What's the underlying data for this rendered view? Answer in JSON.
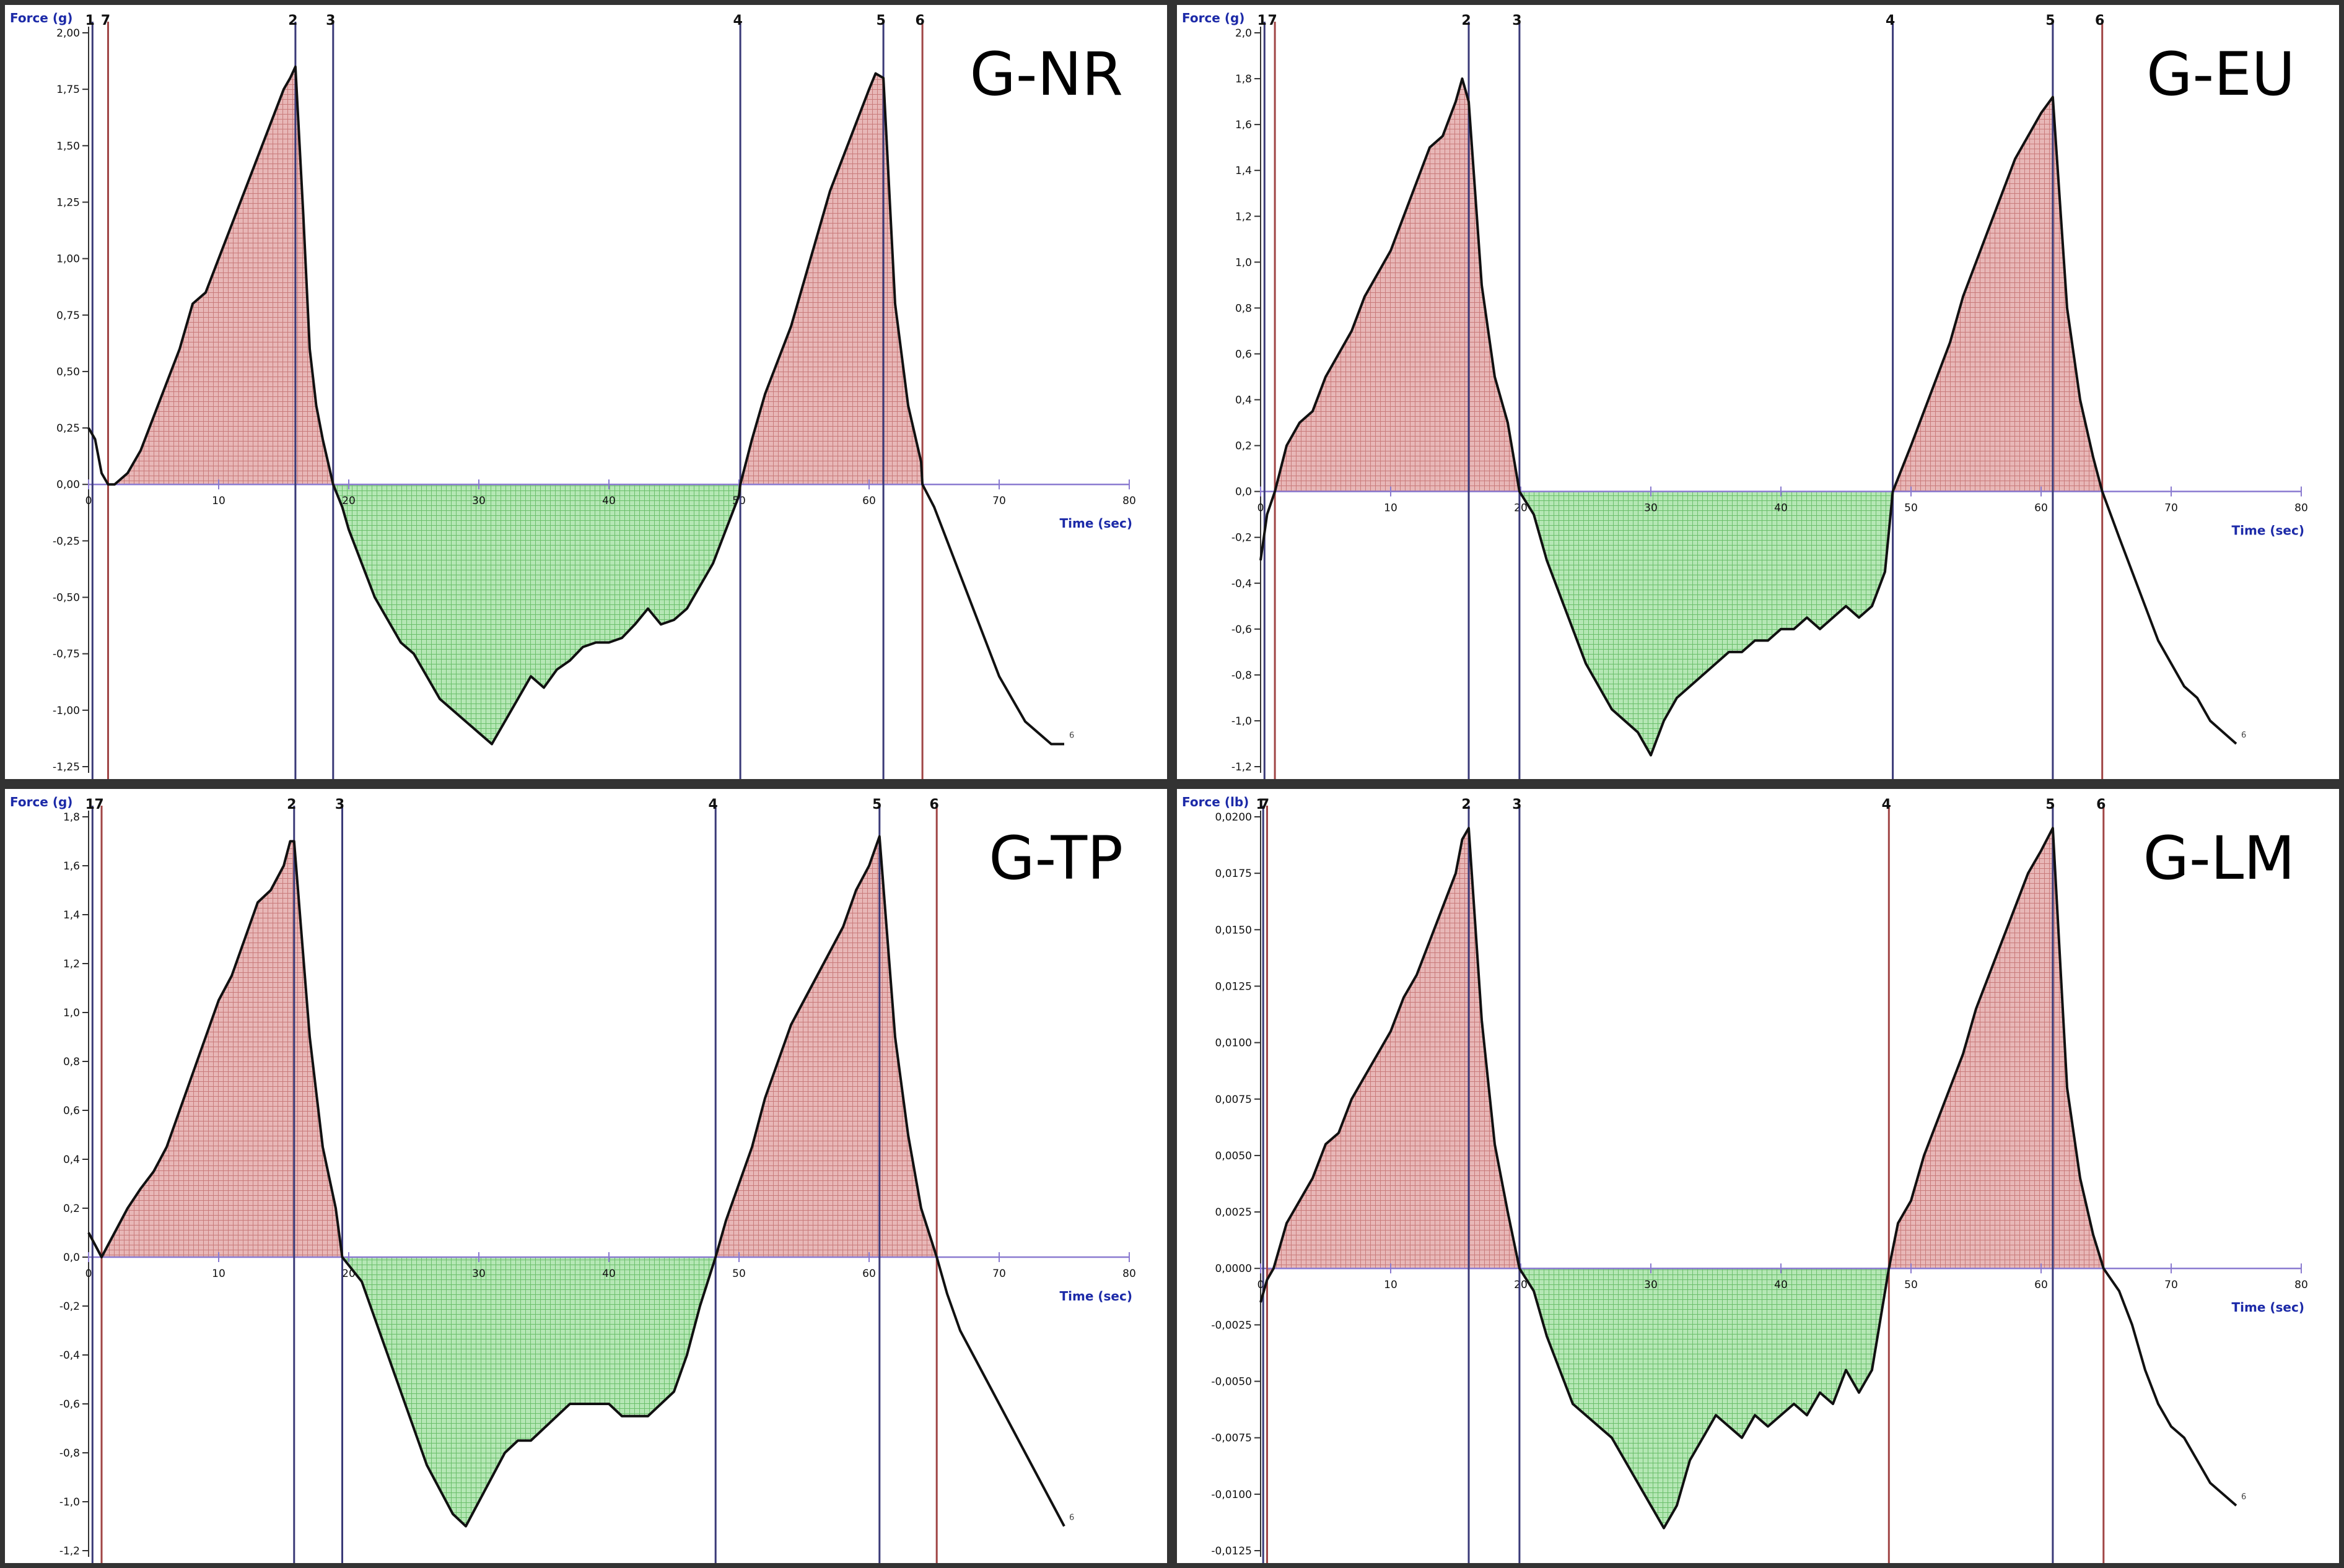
{
  "chart_data": [
    {
      "type": "area",
      "label": "G-NR",
      "ylabel": "Force (g)",
      "xlabel": "Time (sec)",
      "xlim": [
        0,
        80
      ],
      "ylim": [
        -1.25,
        2.0
      ],
      "x_ticks": [
        0,
        10,
        20,
        30,
        40,
        50,
        60,
        70,
        80
      ],
      "x_tick_labels": [
        "0",
        "10",
        "20",
        "30",
        "40",
        "50",
        "60",
        "70",
        "80"
      ],
      "y_ticks": [
        2.0,
        1.75,
        1.5,
        1.25,
        1.0,
        0.75,
        0.5,
        0.25,
        0.0,
        -0.25,
        -0.5,
        -0.75,
        -1.0,
        -1.25
      ],
      "y_tick_labels": [
        "2,00",
        "1,75",
        "1,50",
        "1,25",
        "1,00",
        "0,75",
        "0,50",
        "0,25",
        "0,00",
        "-0,25",
        "-0,50",
        "-0,75",
        "-1,00",
        "-1,25"
      ],
      "markers": [
        {
          "label": "1",
          "x": 0.3,
          "color": "#3a3a78"
        },
        {
          "label": "7",
          "x": 1.5,
          "color": "#a04545"
        },
        {
          "label": "2",
          "x": 15.9,
          "color": "#3a3a78"
        },
        {
          "label": "3",
          "x": 18.8,
          "color": "#3a3a78"
        },
        {
          "label": "4",
          "x": 50.1,
          "color": "#3a3a78"
        },
        {
          "label": "5",
          "x": 61.1,
          "color": "#3a3a78"
        },
        {
          "label": "6",
          "x": 64.1,
          "color": "#a04545"
        }
      ],
      "end_label": "6",
      "series": [
        {
          "x": [
            0,
            0.5,
            1,
            1.5,
            2,
            3,
            4,
            5,
            6,
            7,
            8,
            9,
            10,
            11,
            12,
            13,
            14,
            15,
            15.5,
            15.9,
            16.5,
            17,
            17.5,
            18,
            18.8,
            19.5,
            20,
            21,
            22,
            23,
            24,
            25,
            26,
            27,
            28,
            29,
            30,
            31,
            32,
            33,
            34,
            35,
            36,
            37,
            38,
            39,
            40,
            41,
            42,
            43,
            44,
            45,
            46,
            47,
            48,
            49,
            50,
            50.1,
            51,
            52,
            53,
            54,
            55,
            56,
            57,
            58,
            59,
            60,
            60.5,
            61.1,
            62,
            63,
            64,
            64.1,
            65,
            66,
            67,
            68,
            69,
            70,
            71,
            72,
            73,
            74,
            75
          ],
          "y": [
            0.25,
            0.2,
            0.05,
            0.0,
            0.0,
            0.05,
            0.15,
            0.3,
            0.45,
            0.6,
            0.8,
            0.85,
            1.0,
            1.15,
            1.3,
            1.45,
            1.6,
            1.75,
            1.8,
            1.85,
            1.2,
            0.6,
            0.35,
            0.2,
            0.0,
            -0.1,
            -0.2,
            -0.35,
            -0.5,
            -0.6,
            -0.7,
            -0.75,
            -0.85,
            -0.95,
            -1.0,
            -1.05,
            -1.1,
            -1.15,
            -1.05,
            -0.95,
            -0.85,
            -0.9,
            -0.82,
            -0.78,
            -0.72,
            -0.7,
            -0.7,
            -0.68,
            -0.62,
            -0.55,
            -0.62,
            -0.6,
            -0.55,
            -0.45,
            -0.35,
            -0.2,
            -0.05,
            0.0,
            0.2,
            0.4,
            0.55,
            0.7,
            0.9,
            1.1,
            1.3,
            1.45,
            1.6,
            1.75,
            1.82,
            1.8,
            0.8,
            0.35,
            0.1,
            0.0,
            -0.1,
            -0.25,
            -0.4,
            -0.55,
            -0.7,
            -0.85,
            -0.95,
            -1.05,
            -1.1,
            -1.15,
            -1.15
          ]
        }
      ]
    },
    {
      "type": "area",
      "label": "G-EU",
      "ylabel": "Force (g)",
      "xlabel": "Time (sec)",
      "xlim": [
        0,
        80
      ],
      "ylim": [
        -1.2,
        2.0
      ],
      "x_ticks": [
        0,
        10,
        20,
        30,
        40,
        50,
        60,
        70,
        80
      ],
      "x_tick_labels": [
        "0",
        "10",
        "20",
        "30",
        "40",
        "50",
        "60",
        "70",
        "80"
      ],
      "y_ticks": [
        2.0,
        1.8,
        1.6,
        1.4,
        1.2,
        1.0,
        0.8,
        0.6,
        0.4,
        0.2,
        0.0,
        -0.2,
        -0.4,
        -0.6,
        -0.8,
        -1.0,
        -1.2
      ],
      "y_tick_labels": [
        "2,0",
        "1,8",
        "1,6",
        "1,4",
        "1,2",
        "1,0",
        "0,8",
        "0,6",
        "0,4",
        "0,2",
        "0,0",
        "-0,2",
        "-0,4",
        "-0,6",
        "-0,8",
        "-1,0",
        "-1,2"
      ],
      "markers": [
        {
          "label": "1",
          "x": 0.3,
          "color": "#3a3a78"
        },
        {
          "label": "7",
          "x": 1.1,
          "color": "#a04545"
        },
        {
          "label": "2",
          "x": 16.0,
          "color": "#3a3a78"
        },
        {
          "label": "3",
          "x": 19.9,
          "color": "#3a3a78"
        },
        {
          "label": "4",
          "x": 48.6,
          "color": "#3a3a78"
        },
        {
          "label": "5",
          "x": 60.9,
          "color": "#3a3a78"
        },
        {
          "label": "6",
          "x": 64.7,
          "color": "#a04545"
        }
      ],
      "end_label": "6",
      "series": [
        {
          "x": [
            0,
            0.5,
            1.1,
            2,
            3,
            4,
            5,
            6,
            7,
            8,
            9,
            10,
            11,
            12,
            13,
            14,
            15,
            15.5,
            16,
            17,
            18,
            19,
            19.9,
            21,
            22,
            23,
            24,
            25,
            26,
            27,
            28,
            29,
            30,
            31,
            32,
            33,
            34,
            35,
            36,
            37,
            38,
            39,
            40,
            41,
            42,
            43,
            44,
            45,
            46,
            47,
            48,
            48.6,
            50,
            51,
            52,
            53,
            54,
            55,
            56,
            57,
            58,
            59,
            60,
            60.9,
            62,
            63,
            64,
            64.7,
            66,
            67,
            68,
            69,
            70,
            71,
            72,
            73,
            74,
            75
          ],
          "y": [
            -0.3,
            -0.1,
            0.0,
            0.2,
            0.3,
            0.35,
            0.5,
            0.6,
            0.7,
            0.85,
            0.95,
            1.05,
            1.2,
            1.35,
            1.5,
            1.55,
            1.7,
            1.8,
            1.7,
            0.9,
            0.5,
            0.3,
            0.0,
            -0.1,
            -0.3,
            -0.45,
            -0.6,
            -0.75,
            -0.85,
            -0.95,
            -1.0,
            -1.05,
            -1.15,
            -1.0,
            -0.9,
            -0.85,
            -0.8,
            -0.75,
            -0.7,
            -0.7,
            -0.65,
            -0.65,
            -0.6,
            -0.6,
            -0.55,
            -0.6,
            -0.55,
            -0.5,
            -0.55,
            -0.5,
            -0.35,
            0.0,
            0.2,
            0.35,
            0.5,
            0.65,
            0.85,
            1.0,
            1.15,
            1.3,
            1.45,
            1.55,
            1.65,
            1.72,
            0.8,
            0.4,
            0.15,
            0.0,
            -0.2,
            -0.35,
            -0.5,
            -0.65,
            -0.75,
            -0.85,
            -0.9,
            -1.0,
            -1.05,
            -1.1
          ]
        }
      ]
    },
    {
      "type": "area",
      "label": "G-TP",
      "ylabel": "Force (g)",
      "xlabel": "Time (sec)",
      "xlim": [
        0,
        80
      ],
      "ylim": [
        -1.2,
        1.8
      ],
      "x_ticks": [
        0,
        10,
        20,
        30,
        40,
        50,
        60,
        70,
        80
      ],
      "x_tick_labels": [
        "0",
        "10",
        "20",
        "30",
        "40",
        "50",
        "60",
        "70",
        "80"
      ],
      "y_ticks": [
        1.8,
        1.6,
        1.4,
        1.2,
        1.0,
        0.8,
        0.6,
        0.4,
        0.2,
        0.0,
        -0.2,
        -0.4,
        -0.6,
        -0.8,
        -1.0,
        -1.2
      ],
      "y_tick_labels": [
        "1,8",
        "1,6",
        "1,4",
        "1,2",
        "1,0",
        "0,8",
        "0,6",
        "0,4",
        "0,2",
        "0,0",
        "-0,2",
        "-0,4",
        "-0,6",
        "-0,8",
        "-1,0",
        "-1,2"
      ],
      "markers": [
        {
          "label": "1",
          "x": 0.3,
          "color": "#3a3a78"
        },
        {
          "label": "7",
          "x": 1.0,
          "color": "#a04545"
        },
        {
          "label": "2",
          "x": 15.8,
          "color": "#3a3a78"
        },
        {
          "label": "3",
          "x": 19.5,
          "color": "#3a3a78"
        },
        {
          "label": "4",
          "x": 48.2,
          "color": "#3a3a78"
        },
        {
          "label": "5",
          "x": 60.8,
          "color": "#3a3a78"
        },
        {
          "label": "6",
          "x": 65.2,
          "color": "#a04545"
        }
      ],
      "end_label": "6",
      "series": [
        {
          "x": [
            0,
            0.5,
            1,
            2,
            3,
            4,
            5,
            6,
            7,
            8,
            9,
            10,
            11,
            12,
            13,
            14,
            15,
            15.5,
            15.8,
            17,
            18,
            19,
            19.5,
            21,
            22,
            23,
            24,
            25,
            26,
            27,
            28,
            29,
            30,
            31,
            32,
            33,
            34,
            35,
            36,
            37,
            38,
            39,
            40,
            41,
            42,
            43,
            44,
            45,
            46,
            47,
            48.2,
            49,
            50,
            51,
            52,
            53,
            54,
            55,
            56,
            57,
            58,
            59,
            60,
            60.8,
            62,
            63,
            64,
            65.2,
            66,
            67,
            68,
            69,
            70,
            71,
            72,
            73,
            74,
            75
          ],
          "y": [
            0.1,
            0.05,
            0.0,
            0.1,
            0.2,
            0.28,
            0.35,
            0.45,
            0.6,
            0.75,
            0.9,
            1.05,
            1.15,
            1.3,
            1.45,
            1.5,
            1.6,
            1.7,
            1.7,
            0.9,
            0.45,
            0.2,
            0.0,
            -0.1,
            -0.25,
            -0.4,
            -0.55,
            -0.7,
            -0.85,
            -0.95,
            -1.05,
            -1.1,
            -1.0,
            -0.9,
            -0.8,
            -0.75,
            -0.75,
            -0.7,
            -0.65,
            -0.6,
            -0.6,
            -0.6,
            -0.6,
            -0.65,
            -0.65,
            -0.65,
            -0.6,
            -0.55,
            -0.4,
            -0.2,
            0.0,
            0.15,
            0.3,
            0.45,
            0.65,
            0.8,
            0.95,
            1.05,
            1.15,
            1.25,
            1.35,
            1.5,
            1.6,
            1.72,
            0.9,
            0.5,
            0.2,
            0.0,
            -0.15,
            -0.3,
            -0.4,
            -0.5,
            -0.6,
            -0.7,
            -0.8,
            -0.9,
            -1.0,
            -1.1
          ]
        }
      ]
    },
    {
      "type": "area",
      "label": "G-LM",
      "ylabel": "Force (lb)",
      "xlabel": "Time (sec)",
      "xlim": [
        0,
        80
      ],
      "ylim": [
        -0.0125,
        0.02
      ],
      "x_ticks": [
        0,
        10,
        20,
        30,
        40,
        50,
        60,
        70,
        80
      ],
      "x_tick_labels": [
        "0",
        "10",
        "20",
        "30",
        "40",
        "50",
        "60",
        "70",
        "80"
      ],
      "y_ticks": [
        0.02,
        0.0175,
        0.015,
        0.0125,
        0.01,
        0.0075,
        0.005,
        0.0025,
        0.0,
        -0.0025,
        -0.005,
        -0.0075,
        -0.01,
        -0.0125
      ],
      "y_tick_labels": [
        "0,0200",
        "0,0175",
        "0,0150",
        "0,0125",
        "0,0100",
        "0,0075",
        "0,0050",
        "0,0025",
        "0,0000",
        "-0,0025",
        "-0,0050",
        "-0,0075",
        "-0,0100",
        "-0,0125"
      ],
      "markers": [
        {
          "label": "1",
          "x": 0.2,
          "color": "#3a3a78"
        },
        {
          "label": "7",
          "x": 0.5,
          "color": "#a04545"
        },
        {
          "label": "2",
          "x": 16.0,
          "color": "#3a3a78"
        },
        {
          "label": "3",
          "x": 19.9,
          "color": "#3a3a78"
        },
        {
          "label": "4",
          "x": 48.3,
          "color": "#a04545"
        },
        {
          "label": "5",
          "x": 60.9,
          "color": "#3a3a78"
        },
        {
          "label": "6",
          "x": 64.8,
          "color": "#a04545"
        }
      ],
      "end_label": "6",
      "series": [
        {
          "x": [
            0,
            0.5,
            1,
            2,
            3,
            4,
            5,
            6,
            7,
            8,
            9,
            10,
            11,
            12,
            13,
            14,
            15,
            15.5,
            16,
            17,
            18,
            19,
            19.9,
            21,
            22,
            23,
            24,
            25,
            26,
            27,
            28,
            29,
            30,
            31,
            32,
            33,
            34,
            35,
            36,
            37,
            38,
            39,
            40,
            41,
            42,
            43,
            44,
            45,
            46,
            47,
            48.3,
            49,
            50,
            51,
            52,
            53,
            54,
            55,
            56,
            57,
            58,
            59,
            60,
            60.9,
            62,
            63,
            64,
            64.8,
            66,
            67,
            68,
            69,
            70,
            71,
            72,
            73,
            74,
            75
          ],
          "y": [
            -0.0015,
            -0.0005,
            0.0,
            0.002,
            0.003,
            0.004,
            0.0055,
            0.006,
            0.0075,
            0.0085,
            0.0095,
            0.0105,
            0.012,
            0.013,
            0.0145,
            0.016,
            0.0175,
            0.019,
            0.0195,
            0.011,
            0.0055,
            0.0025,
            0.0,
            -0.001,
            -0.003,
            -0.0045,
            -0.006,
            -0.0065,
            -0.007,
            -0.0075,
            -0.0085,
            -0.0095,
            -0.0105,
            -0.0115,
            -0.0105,
            -0.0085,
            -0.0075,
            -0.0065,
            -0.007,
            -0.0075,
            -0.0065,
            -0.007,
            -0.0065,
            -0.006,
            -0.0065,
            -0.0055,
            -0.006,
            -0.0045,
            -0.0055,
            -0.0045,
            0.0,
            0.002,
            0.003,
            0.005,
            0.0065,
            0.008,
            0.0095,
            0.0115,
            0.013,
            0.0145,
            0.016,
            0.0175,
            0.0185,
            0.0195,
            0.008,
            0.004,
            0.0015,
            0.0,
            -0.001,
            -0.0025,
            -0.0045,
            -0.006,
            -0.007,
            -0.0075,
            -0.0085,
            -0.0095,
            -0.01,
            -0.0105
          ]
        }
      ]
    }
  ],
  "colors": {
    "positive_fill": "#e8b7b7",
    "positive_hatch": "#c97b7b",
    "negative_fill": "#b5e7b5",
    "negative_hatch": "#6bbf6b",
    "curve": "#111111",
    "baseline": "#8a7ad0",
    "axis_title": "#1c2aa8"
  }
}
